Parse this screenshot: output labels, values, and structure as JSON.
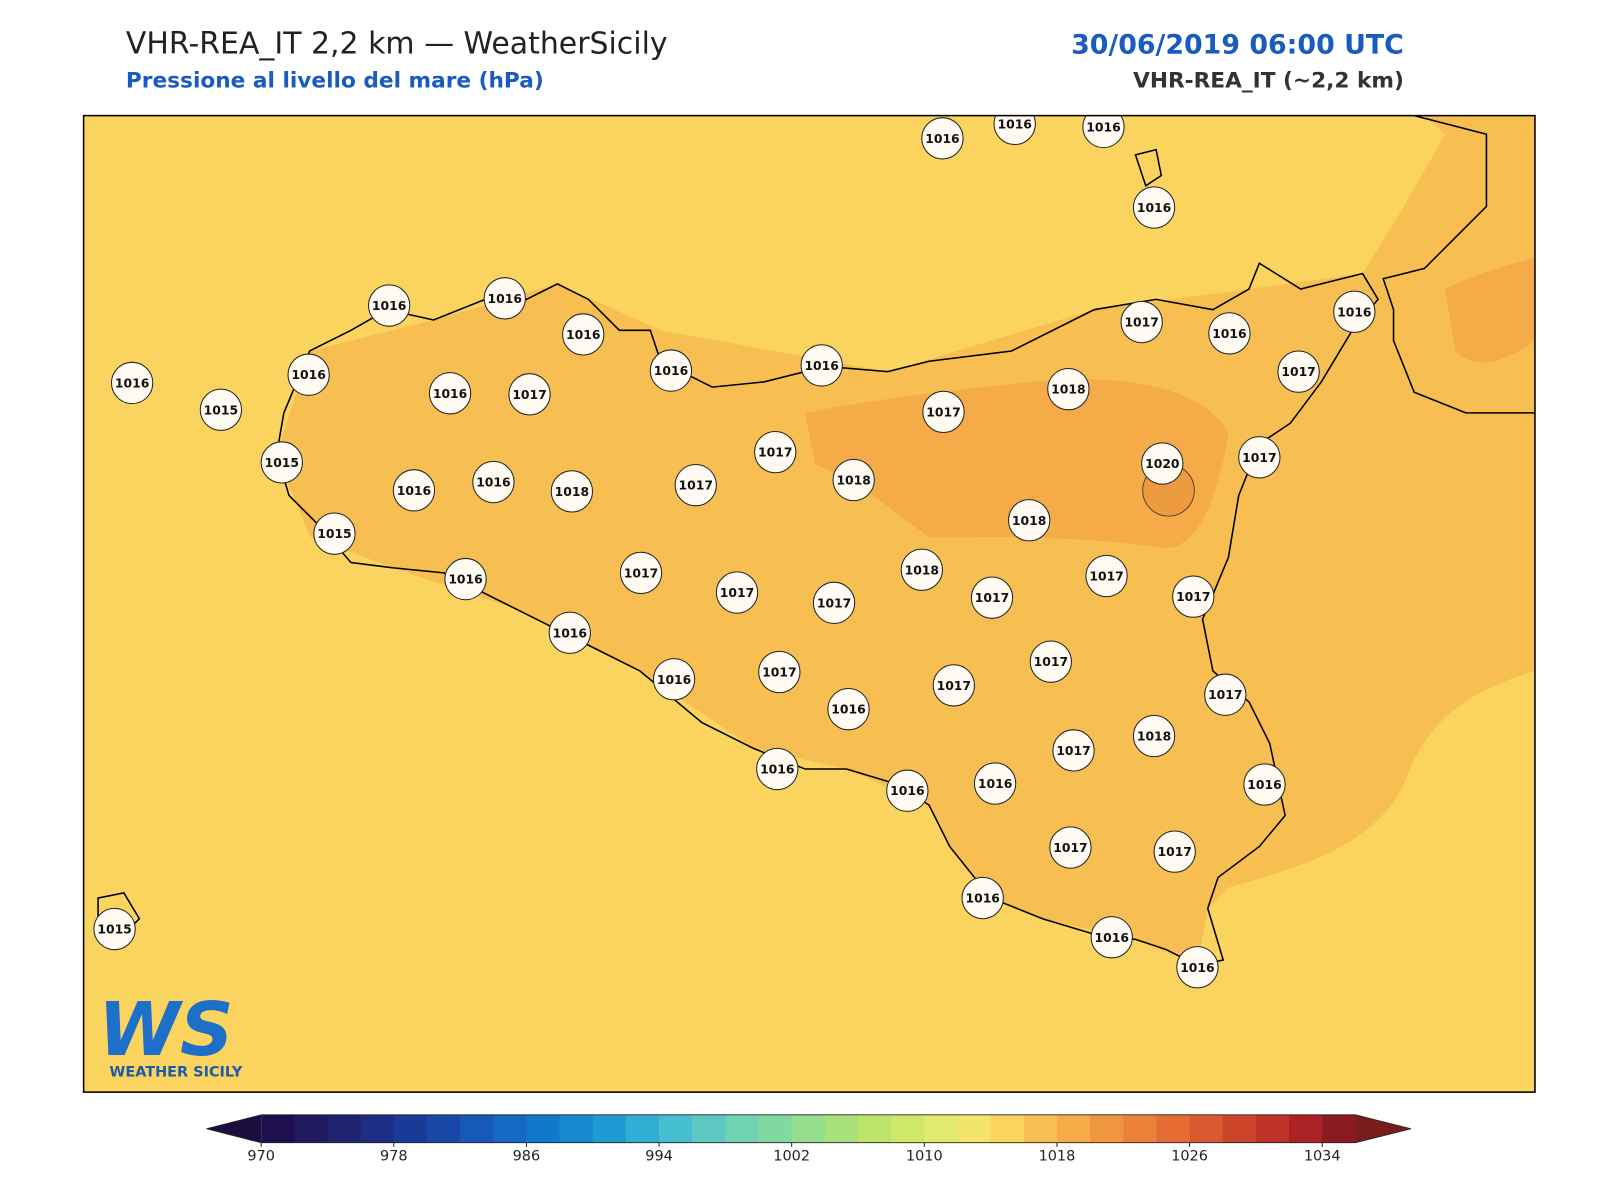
{
  "header": {
    "title": "VHR-REA_IT 2,2 km — WeatherSicily",
    "subtitle": "Pressione al livello del mare (hPa)",
    "date": "30/06/2019 06:00 UTC",
    "model": "VHR-REA_IT (~2,2 km)"
  },
  "stations": [
    1016,
    1016,
    1016,
    1016,
    1016,
    1016,
    1016,
    1016,
    1016,
    1015,
    1016,
    1017,
    1016,
    1016,
    1015,
    1016,
    1016,
    1018,
    1017,
    1017,
    1018,
    1017,
    1018,
    1017,
    1016,
    1016,
    1017,
    1017,
    1020,
    1018,
    1015,
    1016,
    1017,
    1017,
    1017,
    1018,
    1017,
    1017,
    1017,
    1016,
    1016,
    1017,
    1016,
    1017,
    1017,
    1017,
    1018,
    1017,
    1016,
    1016,
    1016,
    1016,
    1017,
    1017,
    1016,
    1016,
    1016,
    1015
  ],
  "logo": {
    "mark": "WS",
    "name": "WEATHER SICILY"
  },
  "colorbar": {
    "range": [
      970,
      1036
    ],
    "ticks": [
      970,
      978,
      986,
      994,
      1002,
      1010,
      1018,
      1026,
      1034
    ],
    "colors": [
      "#1e1050",
      "#201a5e",
      "#1f2270",
      "#1d2d85",
      "#1a3a98",
      "#1849a8",
      "#1659b8",
      "#1469c4",
      "#1179cc",
      "#1589d0",
      "#1f9ad2",
      "#30aed3",
      "#45bfd0",
      "#5ec9c2",
      "#6fd3b2",
      "#80d9a0",
      "#93dd8c",
      "#a8e07a",
      "#bde46a",
      "#d0e868",
      "#e2ea6e",
      "#f2e56a",
      "#fbd45f",
      "#f7bf52",
      "#f4ab48",
      "#f09640",
      "#ec823a",
      "#e56d33",
      "#da582d",
      "#cc4429",
      "#bd3126",
      "#ac2224",
      "#8b1a22"
    ],
    "under": "#1a0f3f",
    "over": "#7a1c1c"
  }
}
